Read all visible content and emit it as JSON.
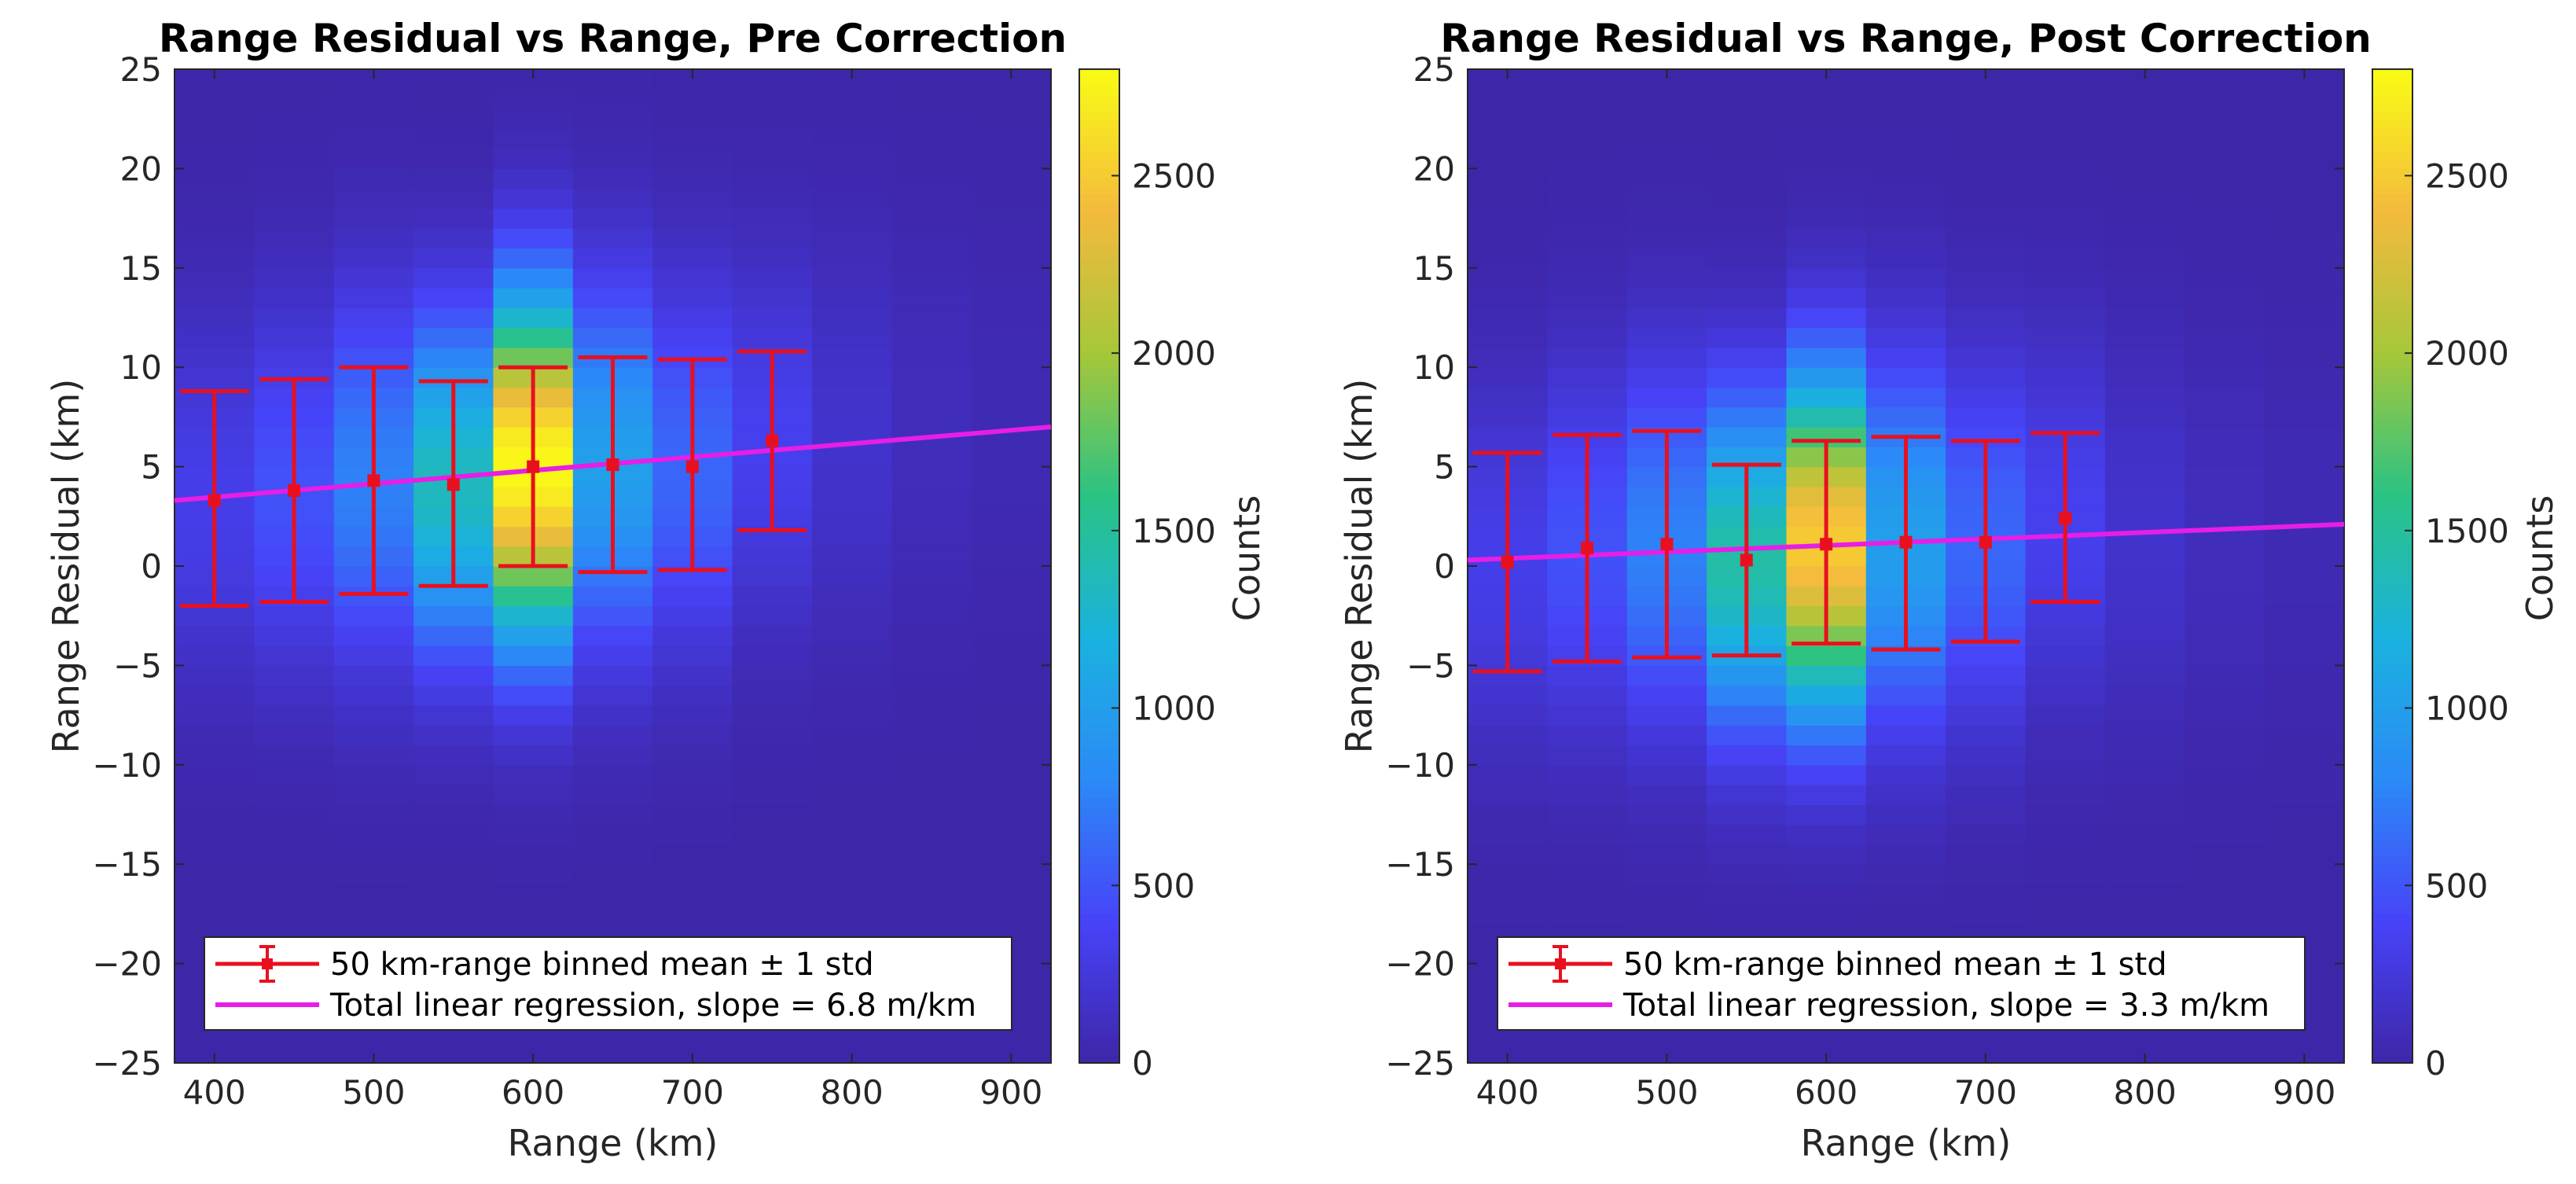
{
  "colormap_stops": [
    "#3e26a8",
    "#4743f8",
    "#2b8af7",
    "#1ab2de",
    "#2ac384",
    "#a6c739",
    "#f4ba3d",
    "#f9fb15"
  ],
  "colors": {
    "errorbar": "#e8101f",
    "regression": "#e61ee6",
    "axis": "#262626"
  },
  "charts": [
    {
      "type": "heatmap",
      "title": "Range Residual vs Range, Pre Correction",
      "xlabel": "Range (km)",
      "ylabel": "Range Residual (km)",
      "xlim": [
        375,
        925
      ],
      "ylim": [
        -25,
        25
      ],
      "xticks": [
        400,
        500,
        600,
        700,
        800,
        900
      ],
      "yticks": [
        -25,
        -20,
        -15,
        -10,
        -5,
        0,
        5,
        10,
        15,
        20,
        25
      ],
      "colorbar": {
        "label": "Counts",
        "lim": [
          0,
          2800
        ],
        "ticks": [
          0,
          500,
          1000,
          1500,
          2000,
          2500
        ]
      },
      "heatmap": {
        "x_centers": [
          400,
          450,
          500,
          550,
          600,
          650,
          700,
          750,
          800,
          850,
          900
        ],
        "x_bin_width": 50,
        "y_bin_width": 1,
        "peak_counts": [
          320,
          480,
          750,
          1350,
          2780,
          1000,
          600,
          350,
          180,
          100,
          60
        ],
        "center_y": [
          3.3,
          3.8,
          4.3,
          4.1,
          5.0,
          5.1,
          5.0,
          6.3,
          6.6,
          7.0,
          7.3
        ],
        "spread_y": [
          6.5,
          6.5,
          6.5,
          6.0,
          6.0,
          6.5,
          6.5,
          6.5,
          7.0,
          7.0,
          7.0
        ]
      },
      "errorbars": {
        "x": [
          400,
          450,
          500,
          550,
          600,
          650,
          700,
          750
        ],
        "mean": [
          3.3,
          3.8,
          4.3,
          4.1,
          5.0,
          5.1,
          5.0,
          6.3
        ],
        "lower": [
          -2.0,
          -1.8,
          -1.4,
          -1.0,
          0.0,
          -0.3,
          -0.2,
          1.8
        ],
        "upper": [
          8.8,
          9.4,
          10.0,
          9.3,
          10.0,
          10.5,
          10.4,
          10.8
        ]
      },
      "regression": {
        "x": [
          375,
          925
        ],
        "y": [
          3.3,
          7.0
        ]
      },
      "legend": {
        "location": "bottom",
        "entries": [
          "50 km-range binned mean ± 1 std",
          "Total linear regression, slope = 6.8 m/km"
        ]
      }
    },
    {
      "type": "heatmap",
      "title": "Range Residual vs Range, Post Correction",
      "xlabel": "Range (km)",
      "ylabel": "Range Residual (km)",
      "xlim": [
        375,
        925
      ],
      "ylim": [
        -25,
        25
      ],
      "xticks": [
        400,
        500,
        600,
        700,
        800,
        900
      ],
      "yticks": [
        -25,
        -20,
        -15,
        -10,
        -5,
        0,
        5,
        10,
        15,
        20,
        25
      ],
      "colorbar": {
        "label": "Counts",
        "lim": [
          0,
          2800
        ],
        "ticks": [
          0,
          500,
          1000,
          1500,
          2000,
          2500
        ]
      },
      "heatmap": {
        "x_centers": [
          400,
          450,
          500,
          550,
          600,
          650,
          700,
          750,
          800,
          850,
          900
        ],
        "x_bin_width": 50,
        "y_bin_width": 1,
        "peak_counts": [
          320,
          480,
          750,
          1450,
          2500,
          1000,
          600,
          350,
          180,
          100,
          60
        ],
        "center_y": [
          0.2,
          0.9,
          1.1,
          0.3,
          1.1,
          1.2,
          1.2,
          2.4,
          1.8,
          2.0,
          2.2
        ],
        "spread_y": [
          6.5,
          6.5,
          6.5,
          6.0,
          6.0,
          6.5,
          6.5,
          6.5,
          7.0,
          7.0,
          7.0
        ]
      },
      "errorbars": {
        "x": [
          400,
          450,
          500,
          550,
          600,
          650,
          700,
          750
        ],
        "mean": [
          0.2,
          0.9,
          1.1,
          0.3,
          1.1,
          1.2,
          1.2,
          2.4
        ],
        "lower": [
          -5.3,
          -4.8,
          -4.6,
          -4.5,
          -3.9,
          -4.2,
          -3.8,
          -1.8
        ],
        "upper": [
          5.7,
          6.6,
          6.8,
          5.1,
          6.3,
          6.5,
          6.3,
          6.7
        ]
      },
      "regression": {
        "x": [
          375,
          925
        ],
        "y": [
          0.3,
          2.1
        ]
      },
      "legend": {
        "location": "bottom",
        "entries": [
          "50 km-range binned mean ± 1 std",
          "Total linear regression, slope = 3.3 m/km"
        ]
      }
    }
  ]
}
